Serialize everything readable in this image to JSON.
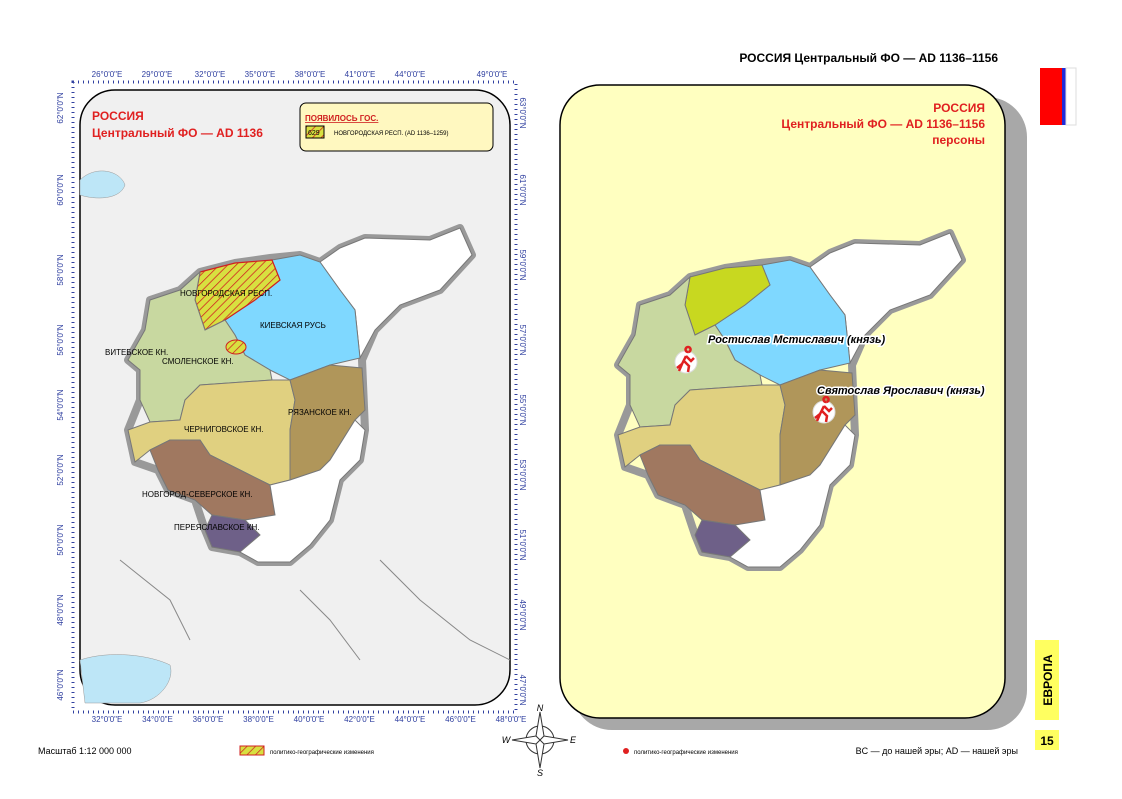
{
  "header": {
    "title": "РОССИЯ Центральный ФО — AD 1136–1156"
  },
  "map_left": {
    "title": [
      "РОССИЯ",
      "Центральный ФО — AD 1136"
    ],
    "legend": {
      "heading": "ПОЯВИЛОСЬ ГОС.",
      "code": "629",
      "item": "НОВГОРОДСКАЯ РЕСП. (AD 1136–1259)"
    },
    "axes": {
      "top": [
        "26°0'0\"E",
        "29°0'0\"E",
        "32°0'0\"E",
        "35°0'0\"E",
        "38°0'0\"E",
        "41°0'0\"E",
        "44°0'0\"E",
        "49°0'0\"E"
      ],
      "bottom": [
        "32°0'0\"E",
        "34°0'0\"E",
        "36°0'0\"E",
        "38°0'0\"E",
        "40°0'0\"E",
        "42°0'0\"E",
        "44°0'0\"E",
        "46°0'0\"E",
        "48°0'0\"E"
      ],
      "left": [
        "62°0'0\"N",
        "60°0'0\"N",
        "58°0'0\"N",
        "56°0'0\"N",
        "54°0'0\"N",
        "52°0'0\"N",
        "50°0'0\"N",
        "48°0'0\"N",
        "46°0'0\"N"
      ],
      "right": [
        "63°0'0\"N",
        "61°0'0\"N",
        "59°0'0\"N",
        "57°0'0\"N",
        "55°0'0\"N",
        "53°0'0\"N",
        "51°0'0\"N",
        "49°0'0\"N",
        "47°0'0\"N"
      ]
    },
    "regions": [
      "НОВГОРОДСКАЯ РЕСП.",
      "КИЕВСКАЯ РУСЬ",
      "ВИТЕБСКОЕ КН.",
      "СМОЛЕНСКОЕ КН.",
      "РЯЗАНСКОЕ КН.",
      "ЧЕРНИГОВСКОЕ КН.",
      "НОВГОРОД-СЕВЕРСКОЕ КН.",
      "ПЕРЕЯСЛАВСКОЕ КН."
    ]
  },
  "map_right": {
    "title": [
      "РОССИЯ",
      "Центральный ФО — AD 1136–1156",
      "персоны"
    ],
    "persons": [
      "Ростислав Мстиславич (князь)",
      "Святослав Ярославич (князь)"
    ]
  },
  "compass": [
    "N",
    "W",
    "E",
    "S"
  ],
  "footer": {
    "scale": "Масштаб 1:12 000 000",
    "legend_left": "политико-географические изменения",
    "legend_right": "политико-географические изменения",
    "note": "BC — до нашей эры; AD — нашей эры",
    "section": "ЕВРОПА",
    "page": "15"
  }
}
